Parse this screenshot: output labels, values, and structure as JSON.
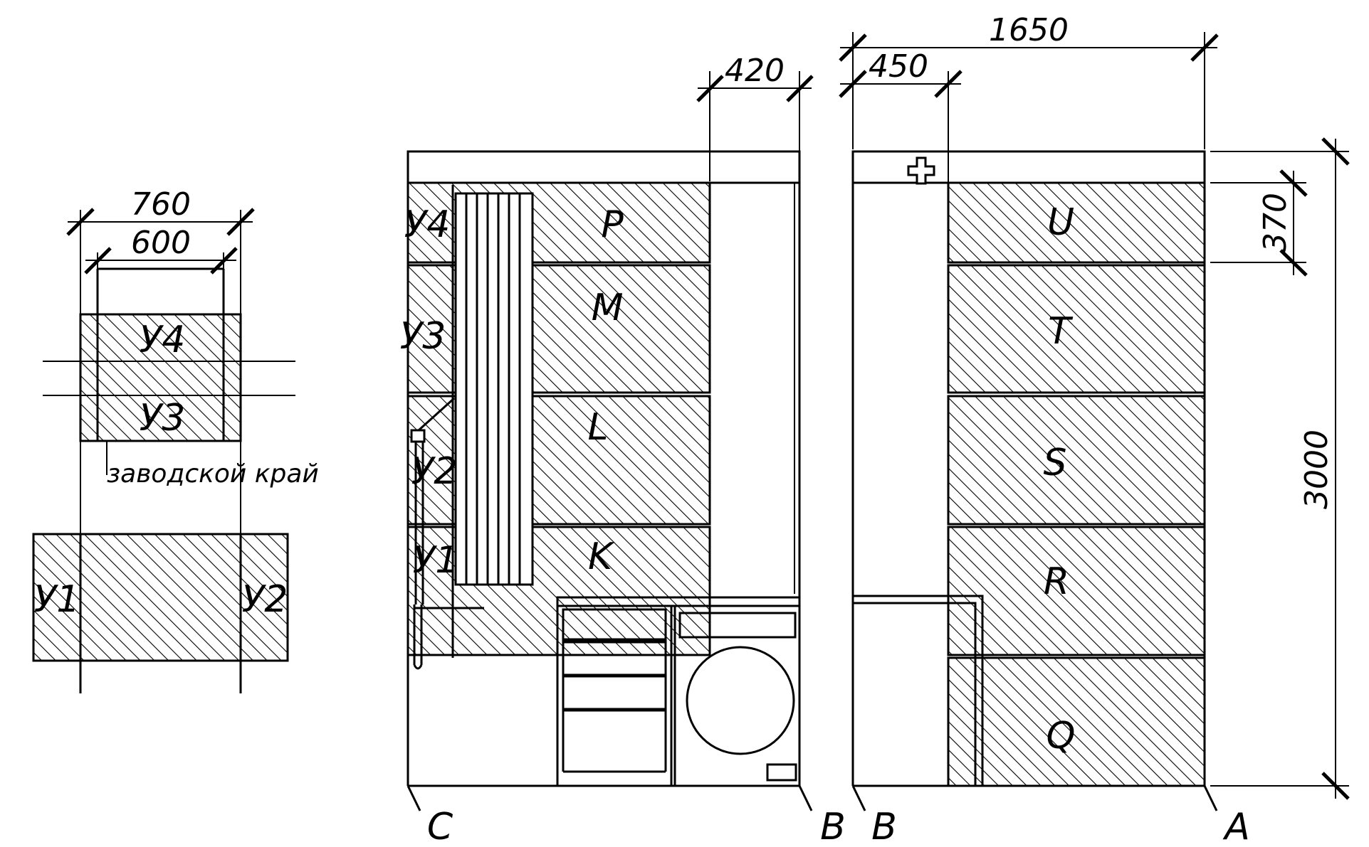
{
  "drawing": {
    "line_color": "#000000",
    "background": "#ffffff",
    "detail_view": {
      "dims": {
        "outer_width": "760",
        "inner_width": "600"
      },
      "panels": {
        "top": "У4",
        "middle": "У3",
        "bottom_left": "У1",
        "bottom_right": "У2"
      },
      "note": "заводской край"
    },
    "wall_cb": {
      "dim_top": "420",
      "panels": [
        "P",
        "M",
        "L",
        "K"
      ],
      "side_labels": [
        "У4",
        "У3",
        "У2",
        "У1"
      ],
      "corner_left": "C",
      "corner_right": "B"
    },
    "wall_ba": {
      "dims": {
        "total_width": "1650",
        "offset": "450",
        "top_band": "370",
        "height": "3000"
      },
      "panels": [
        "U",
        "T",
        "S",
        "R",
        "Q"
      ],
      "corner_left": "B",
      "corner_right": "A"
    }
  }
}
